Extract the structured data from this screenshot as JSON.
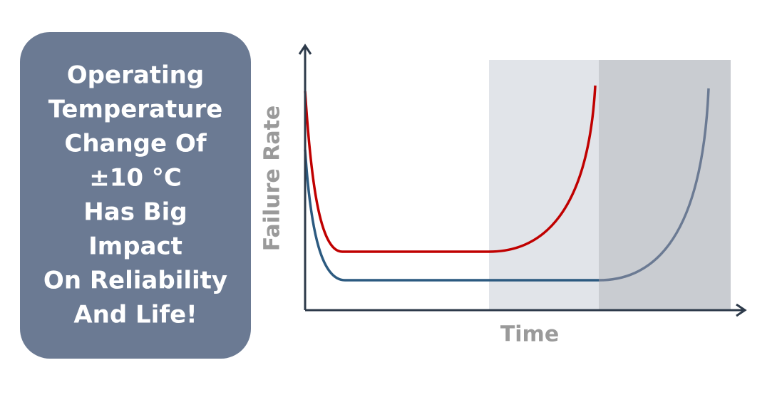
{
  "box": {
    "lines": [
      "Operating",
      "Temperature",
      "Change Of",
      "±10 °C",
      "Has Big",
      "Impact",
      "On Reliability",
      "And Life!"
    ]
  },
  "diagram": {
    "y_axis_label": "Failure Rate",
    "x_axis_label": "Time"
  }
}
